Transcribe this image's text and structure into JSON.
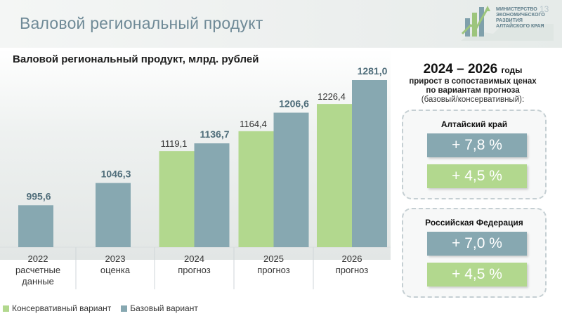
{
  "header": {
    "title": "Валовой региональный продукт",
    "page_number": "13",
    "logo_text": "МИНИСТЕРСТВО ЭКОНОМИЧЕСКОГО РАЗВИТИЯ АЛТАЙСКОГО КРАЯ"
  },
  "colors": {
    "base": "#87a8b1",
    "conservative": "#b2d88e"
  },
  "chart_data": {
    "type": "bar",
    "title": "Валовой региональный продукт, млрд. рублей",
    "categories": [
      [
        "2022",
        "расчетные",
        "данные"
      ],
      [
        "2023",
        "оценка"
      ],
      [
        "2024",
        "прогноз"
      ],
      [
        "2025",
        "прогноз"
      ],
      [
        "2026",
        "прогноз"
      ]
    ],
    "series": [
      {
        "name": "Консервативный вариант",
        "values": [
          null,
          null,
          1119.1,
          1164.4,
          1226.4
        ]
      },
      {
        "name": "Базовый вариант",
        "values": [
          995.6,
          1046.3,
          1136.7,
          1206.6,
          1281.0
        ]
      }
    ],
    "value_labels": {
      "Консервативный вариант": [
        null,
        null,
        "1119,1",
        "1164,4",
        "1226,4"
      ],
      "Базовый вариант": [
        "995,6",
        "1046,3",
        "1136,7",
        "1206,6",
        "1281,0"
      ]
    },
    "legend": "bottom-left"
  },
  "growth": {
    "period": "2024 – 2026",
    "period_suffix": "годы",
    "note_line1": "прирост в сопоставимых ценах",
    "note_line2": "по вариантам прогноза",
    "note_line3": "(базовый/консервативный):",
    "regions": [
      {
        "name": "Алтайский край",
        "base": "+ 7,8 %",
        "conservative": "+ 4,5 %"
      },
      {
        "name": "Российская Федерация",
        "base": "+ 7,0 %",
        "conservative": "+ 4,5 %"
      }
    ]
  }
}
